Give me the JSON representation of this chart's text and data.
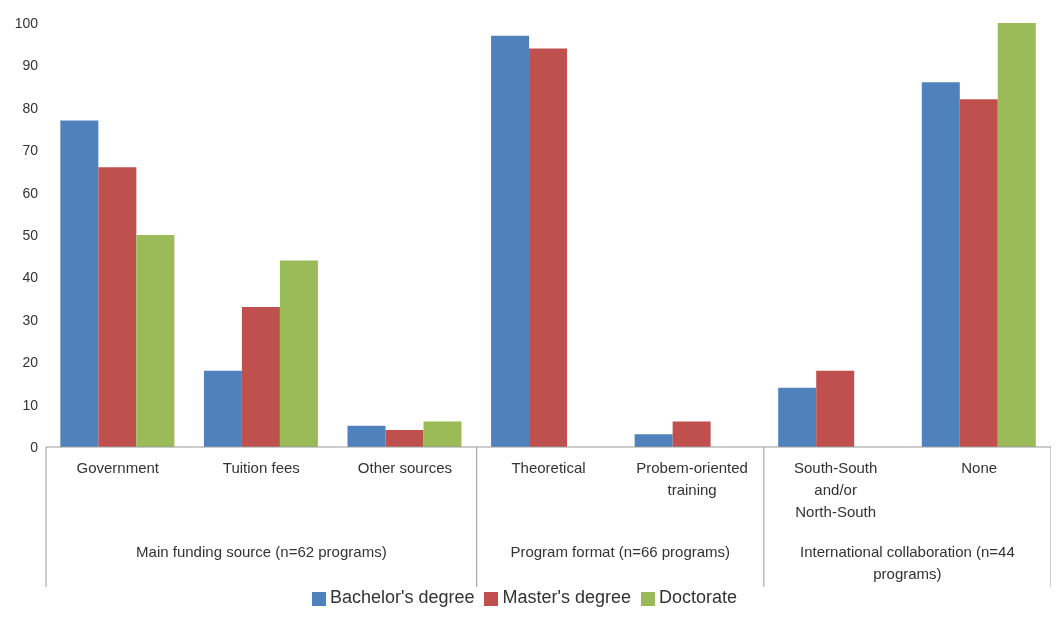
{
  "chart_data": {
    "type": "bar",
    "categories": [
      "Government",
      "Tuition fees",
      "Other sources",
      "Theoretical",
      "Probem-oriented training",
      "South-South and/or North-South",
      "None"
    ],
    "series": [
      {
        "name": "Bachelor's degree",
        "color": "#4f81bd",
        "values": [
          77,
          18,
          5,
          97,
          3,
          14,
          86
        ]
      },
      {
        "name": "Master's degree",
        "color": "#c0504d",
        "values": [
          66,
          33,
          4,
          94,
          6,
          18,
          82
        ]
      },
      {
        "name": "Doctorate",
        "color": "#9bbb59",
        "values": [
          50,
          44,
          6,
          null,
          null,
          null,
          100
        ]
      }
    ],
    "ylim": [
      0,
      100
    ],
    "yticks": [
      0,
      10,
      20,
      30,
      40,
      50,
      60,
      70,
      80,
      90,
      100
    ],
    "grid": false,
    "legend": "bottom",
    "annotations": [
      "Main funding source (n=62 programs)",
      "Program format (n=66 programs)",
      "International collaboration (n=44 programs)"
    ]
  }
}
